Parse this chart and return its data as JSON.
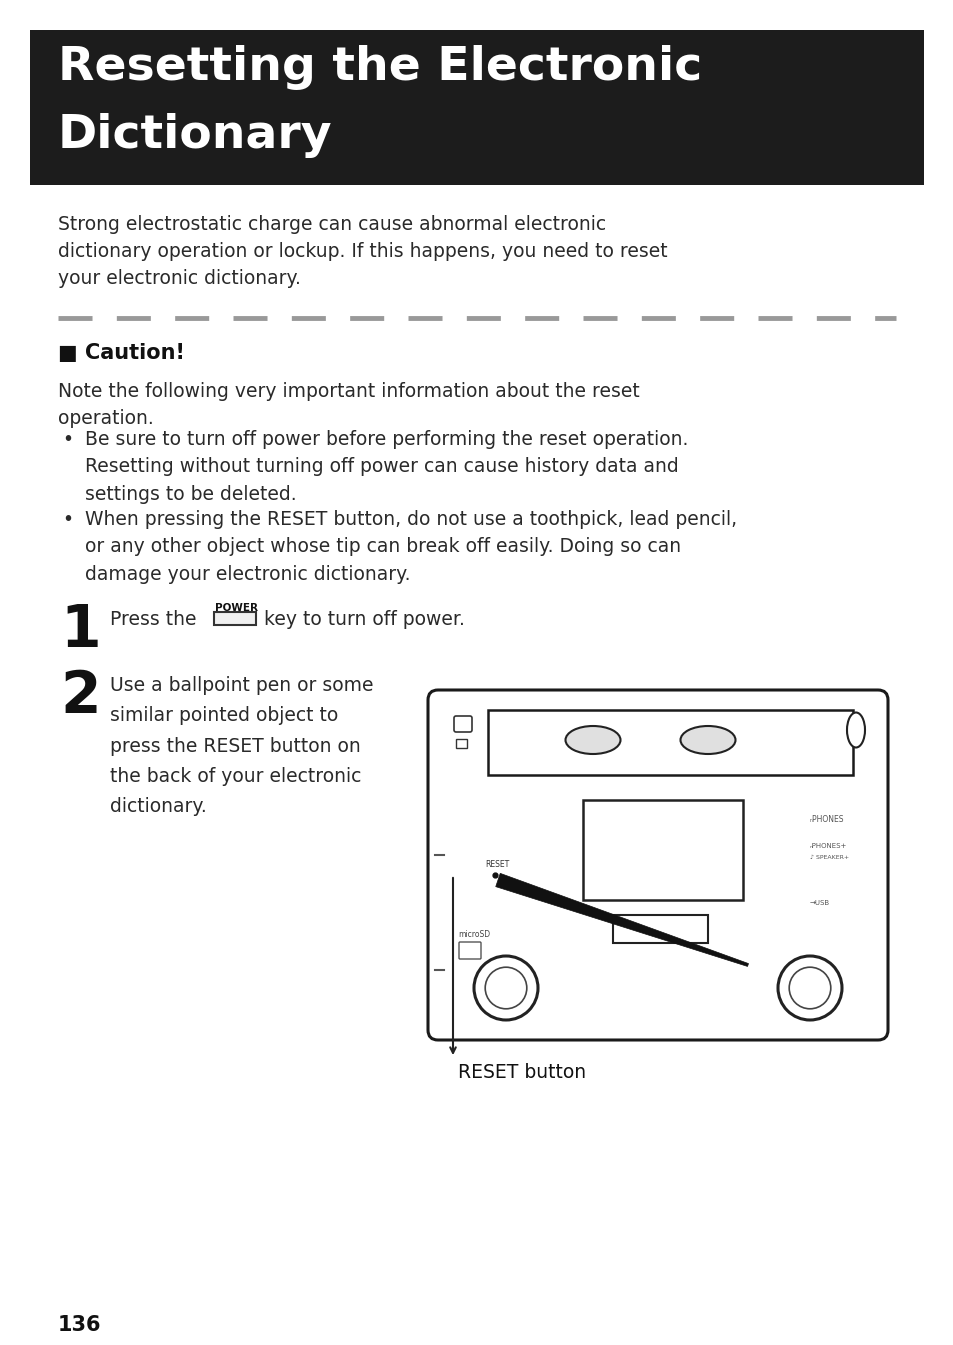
{
  "bg_color": "#ffffff",
  "header_bg": "#1c1c1c",
  "header_text_line1": "Resetting the Electronic",
  "header_text_line2": "Dictionary",
  "header_text_color": "#ffffff",
  "header_fontsize": 34,
  "body_text_color": "#2a2a2a",
  "intro_text": "Strong electrostatic charge can cause abnormal electronic\ndictionary operation or lockup. If this happens, you need to reset\nyour electronic dictionary.",
  "caution_title": "■ Caution!",
  "caution_note": "Note the following very important information about the reset\noperation.",
  "bullet1_line1": "Be sure to turn off power before performing the reset operation.",
  "bullet1_line2": "Resetting without turning off power can cause history data and",
  "bullet1_line3": "settings to be deleted.",
  "bullet2_line1": "When pressing the RESET button, do not use a toothpick, lead pencil,",
  "bullet2_line2": "or any other object whose tip can break off easily. Doing so can",
  "bullet2_line3": "damage your electronic dictionary.",
  "step1_num": "1",
  "step1_power_label": "POWER",
  "step2_num": "2",
  "step2_text": "Use a ballpoint pen or some\nsimilar pointed object to\npress the RESET button on\nthe back of your electronic\ndictionary.",
  "reset_label": "RESET button",
  "page_num": "136",
  "dash_color": "#999999",
  "body_fontsize": 13.5,
  "caution_fontsize": 15,
  "step_num_fontsize": 42
}
